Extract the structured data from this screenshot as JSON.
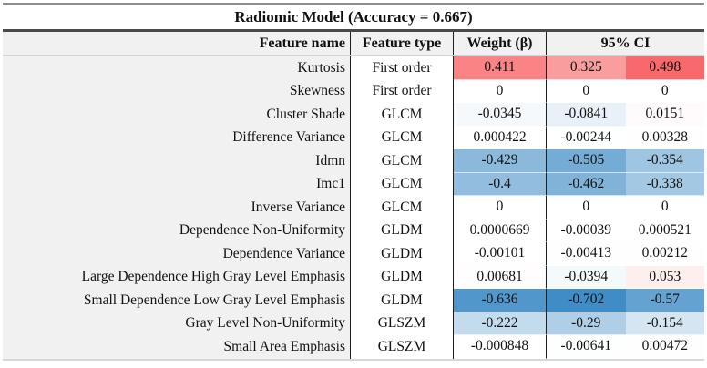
{
  "title": "Radiomic Model (Accuracy = 0.667)",
  "header": {
    "feature_name": "Feature name",
    "feature_type": "Feature type",
    "weight": "Weight (β)",
    "ci": "95% CI"
  },
  "color_scale": {
    "positive_color": "#F8696B",
    "negative_color": "#3F8CC6",
    "zero_color": "#FFFFFF",
    "positive_max": 0.498,
    "negative_min": -0.702,
    "header_bg": "#F1F1F1",
    "feature_name_col_bg": "#F1F1F1"
  },
  "chart_data": {
    "type": "table",
    "title": "Radiomic Model (Accuracy = 0.667)",
    "accuracy": 0.667,
    "columns": [
      "Feature name",
      "Feature type",
      "Weight (β)",
      "95% CI (lower)",
      "95% CI (upper)"
    ],
    "rows": [
      {
        "feature": "Kurtosis",
        "ftype": "First order",
        "weight": "0.411",
        "ci_low": "0.325",
        "ci_high": "0.498"
      },
      {
        "feature": "Skewness",
        "ftype": "First order",
        "weight": "0",
        "ci_low": "0",
        "ci_high": "0"
      },
      {
        "feature": "Cluster Shade",
        "ftype": "GLCM",
        "weight": "-0.0345",
        "ci_low": "-0.0841",
        "ci_high": "0.0151"
      },
      {
        "feature": "Difference Variance",
        "ftype": "GLCM",
        "weight": "0.000422",
        "ci_low": "-0.00244",
        "ci_high": "0.00328"
      },
      {
        "feature": "Idmn",
        "ftype": "GLCM",
        "weight": "-0.429",
        "ci_low": "-0.505",
        "ci_high": "-0.354"
      },
      {
        "feature": "Imc1",
        "ftype": "GLCM",
        "weight": "-0.4",
        "ci_low": "-0.462",
        "ci_high": "-0.338"
      },
      {
        "feature": "Inverse Variance",
        "ftype": "GLCM",
        "weight": "0",
        "ci_low": "0",
        "ci_high": "0"
      },
      {
        "feature": "Dependence Non-Uniformity",
        "ftype": "GLDM",
        "weight": "0.0000669",
        "ci_low": "-0.00039",
        "ci_high": "0.000521"
      },
      {
        "feature": "Dependence Variance",
        "ftype": "GLDM",
        "weight": "-0.00101",
        "ci_low": "-0.00413",
        "ci_high": "0.00212"
      },
      {
        "feature": "Large Dependence High Gray Level Emphasis",
        "ftype": "GLDM",
        "weight": "0.00681",
        "ci_low": "-0.0394",
        "ci_high": "0.053"
      },
      {
        "feature": "Small Dependence Low Gray Level Emphasis",
        "ftype": "GLDM",
        "weight": "-0.636",
        "ci_low": "-0.702",
        "ci_high": "-0.57"
      },
      {
        "feature": "Gray Level Non-Uniformity",
        "ftype": "GLSZM",
        "weight": "-0.222",
        "ci_low": "-0.29",
        "ci_high": "-0.154"
      },
      {
        "feature": "Small Area Emphasis",
        "ftype": "GLSZM",
        "weight": "-0.000848",
        "ci_low": "-0.00641",
        "ci_high": "0.00472"
      }
    ]
  }
}
